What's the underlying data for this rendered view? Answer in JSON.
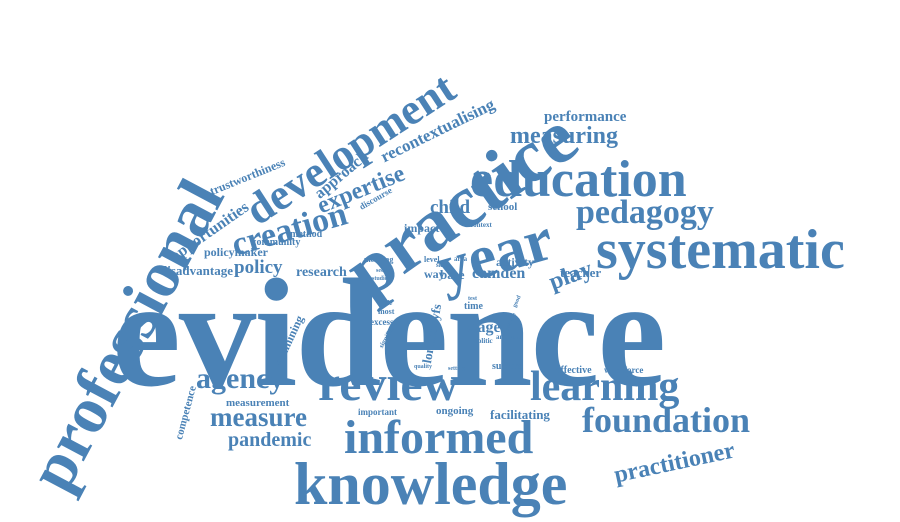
{
  "color": "#4a82b6",
  "words": {
    "evidence": "evidence",
    "professional": "professional",
    "practice": "practice",
    "development": "development",
    "education": "education",
    "year": "year",
    "systematic": "systematic",
    "pedagogy": "pedagogy",
    "review": "review",
    "learning": "learning",
    "knowledge": "knowledge",
    "informed": "informed",
    "foundation": "foundation",
    "agency": "agency",
    "measure": "measure",
    "pandemic": "pandemic",
    "practitioner": "practitioner",
    "creation": "creation",
    "expertise": "expertise",
    "recontextualising": "recontextualising",
    "measuring": "measuring",
    "performance": "performance",
    "approach": "approach",
    "trustworthiness": "trustworthiness",
    "opportunities": "opportunities",
    "policymaker": "policymaker",
    "community": "community",
    "method": "method",
    "disadvantage": "disadvantage",
    "policy": "policy",
    "research": "research",
    "child": "child",
    "school": "school",
    "impact": "impact",
    "play": "play",
    "teacher": "teacher",
    "activity": "activity",
    "camden": "camden",
    "base": "base",
    "way": "way",
    "time": "time",
    "stage": "stage",
    "londoneyfs": "londoneyfs",
    "examining": "examining",
    "excess": "excess",
    "most": "most",
    "scale": "scale",
    "meaning": "meaning",
    "sector": "sector",
    "studies": "studies",
    "discourse": "discourse",
    "context": "context",
    "level": "level",
    "area": "area",
    "skill": "skill",
    "signifier": "signifier",
    "quality": "quality",
    "setting": "setting",
    "success": "success",
    "effective": "effective",
    "workforce": "workforce",
    "analysis": "analysis",
    "politic": "politic",
    "positive": "positive",
    "good": "good",
    "competence": "competence",
    "measurement": "measurement",
    "important": "important",
    "ongoing": "ongoing",
    "facilitating": "facilitating",
    "test": "test"
  }
}
